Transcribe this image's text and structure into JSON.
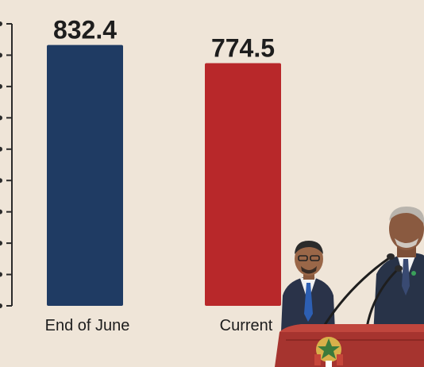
{
  "chart_data": {
    "type": "bar",
    "categories": [
      "End of June",
      "Current"
    ],
    "values": [
      832.4,
      774.5
    ],
    "value_labels": [
      "832.4",
      "774.5"
    ],
    "ylim": [
      0,
      900
    ],
    "ytick_values": [
      0,
      100,
      200,
      300,
      400,
      500,
      600,
      700,
      800,
      900
    ],
    "y_tick_labels_visible": false,
    "grid": false,
    "bar_colors": [
      "#1f3b63",
      "#b8282a"
    ],
    "axis_color": "#2b2b2b",
    "text_color": "#1d1d1d"
  },
  "photo": {
    "description_icon": "speaker-at-podium-photo",
    "suit_color": "#283348",
    "podium_color": "#a6342f",
    "tie_color": "#2d5fb3"
  }
}
